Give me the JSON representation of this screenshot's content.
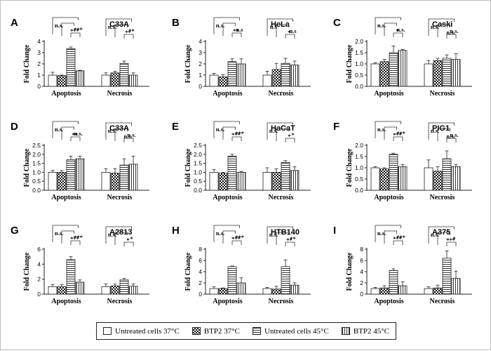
{
  "legend": {
    "items": [
      {
        "label": "Untreated cells 37°C",
        "pattern": "white"
      },
      {
        "label": "BTP2 37°C",
        "pattern": "check"
      },
      {
        "label": "Untreated cells 45°C",
        "pattern": "hlines"
      },
      {
        "label": "BTP2 45°C",
        "pattern": "vlines"
      }
    ]
  },
  "chart_data": [
    {
      "panel": "A",
      "title": "C33A",
      "type": "bar",
      "ylabel": "Fold Change",
      "categories": [
        "Apoptosis",
        "Necrosis"
      ],
      "ylim": [
        0,
        4
      ],
      "yticks": [
        "0",
        "1",
        "2",
        "3",
        "4"
      ],
      "values": [
        [
          1.0,
          0.95,
          3.35,
          1.38
        ],
        [
          1.0,
          1.2,
          2.05,
          1.0
        ]
      ],
      "errors": [
        [
          0.25,
          0.05,
          0.15,
          0.05
        ],
        [
          0.2,
          0.15,
          0.2,
          0.2
        ]
      ],
      "annotations": [
        [
          "n.s.",
          "***",
          "***"
        ],
        [
          "n.s.",
          "**",
          "**"
        ]
      ]
    },
    {
      "panel": "B",
      "title": "HeLa",
      "type": "bar",
      "ylabel": "Fold Change",
      "categories": [
        "Apoptosis",
        "Necrosis"
      ],
      "ylim": [
        0,
        4
      ],
      "yticks": [
        "0",
        "1",
        "2",
        "3",
        "4"
      ],
      "values": [
        [
          1.0,
          0.85,
          2.2,
          2.0
        ],
        [
          1.0,
          1.5,
          2.05,
          1.9
        ]
      ],
      "errors": [
        [
          0.15,
          0.2,
          0.25,
          0.45
        ],
        [
          0.35,
          0.55,
          0.45,
          0.35
        ]
      ],
      "annotations": [
        [
          "n.s.",
          "**",
          "n.s"
        ],
        [
          "n.s",
          "*",
          "n.s"
        ]
      ]
    },
    {
      "panel": "C",
      "title": "Caski",
      "type": "bar",
      "ylabel": "Fold Change",
      "categories": [
        "Apoptosis",
        "Necrosis"
      ],
      "ylim": [
        0,
        2.0
      ],
      "yticks": [
        "0.0",
        "0.5",
        "1.0",
        "1.5",
        "2.0"
      ],
      "values": [
        [
          1.0,
          1.1,
          1.5,
          1.6
        ],
        [
          1.0,
          1.15,
          1.25,
          1.2
        ]
      ],
      "errors": [
        [
          0.05,
          0.1,
          0.3,
          0.05
        ],
        [
          0.15,
          0.1,
          0.15,
          0.25
        ]
      ],
      "annotations": [
        [
          "n.s.",
          "*",
          "n.s."
        ],
        [
          "n.s.",
          "n.s.",
          "n.s."
        ]
      ]
    },
    {
      "panel": "D",
      "title": "C33A",
      "type": "bar",
      "ylabel": "Fold Change",
      "categories": [
        "Apoptosis",
        "Necrosis"
      ],
      "ylim": [
        0,
        2.5
      ],
      "yticks": [
        "0.0",
        "0.5",
        "1.0",
        "1.5",
        "2.0",
        "2.5"
      ],
      "values": [
        [
          1.0,
          1.0,
          1.7,
          1.75
        ],
        [
          1.0,
          0.95,
          1.4,
          1.45
        ]
      ],
      "errors": [
        [
          0.1,
          0.1,
          0.2,
          0.15
        ],
        [
          0.2,
          0.25,
          0.35,
          0.45
        ]
      ],
      "annotations": [
        [
          "n.s.",
          "**",
          "n.s."
        ],
        [
          "n.s.",
          "n.s.",
          "n.s."
        ]
      ]
    },
    {
      "panel": "E",
      "title": "HaCaT",
      "type": "bar",
      "ylabel": "Fold Change",
      "categories": [
        "Apoptosis",
        "Necrosis"
      ],
      "ylim": [
        0,
        2.5
      ],
      "yticks": [
        "0.0",
        "0.5",
        "1.0",
        "1.5",
        "2.0",
        "2.5"
      ],
      "values": [
        [
          1.0,
          0.95,
          1.9,
          1.0
        ],
        [
          1.0,
          1.0,
          1.55,
          1.1
        ]
      ],
      "errors": [
        [
          0.15,
          0.05,
          0.1,
          0.05
        ],
        [
          0.25,
          0.2,
          0.1,
          0.2
        ]
      ],
      "annotations": [
        [
          "n.s.",
          "***",
          "***"
        ],
        [
          "n.s.",
          "*",
          "*"
        ]
      ]
    },
    {
      "panel": "F",
      "title": "PIG1",
      "type": "bar",
      "ylabel": "Fold Change",
      "categories": [
        "Apoptosis",
        "Necrosis"
      ],
      "ylim": [
        0,
        2.0
      ],
      "yticks": [
        "0.0",
        "0.5",
        "1.0",
        "1.5",
        "2.0"
      ],
      "values": [
        [
          1.0,
          0.95,
          1.6,
          1.05
        ],
        [
          1.0,
          0.85,
          1.4,
          1.05
        ]
      ],
      "errors": [
        [
          0.05,
          0.05,
          0.05,
          0.1
        ],
        [
          0.35,
          0.2,
          0.35,
          0.1
        ]
      ],
      "annotations": [
        [
          "n.s.",
          "***",
          "***"
        ],
        [
          "n.s.",
          "n.s.",
          "n.s."
        ]
      ]
    },
    {
      "panel": "G",
      "title": "A2813",
      "type": "bar",
      "ylabel": "Fold Change",
      "categories": [
        "Apoptosis",
        "Necrosis"
      ],
      "ylim": [
        0,
        6
      ],
      "yticks": [
        "0",
        "2",
        "4",
        "6"
      ],
      "values": [
        [
          1.0,
          1.0,
          4.6,
          1.6
        ],
        [
          1.0,
          1.1,
          1.9,
          1.05
        ]
      ],
      "errors": [
        [
          0.3,
          0.3,
          0.4,
          0.3
        ],
        [
          0.35,
          0.25,
          0.2,
          0.3
        ]
      ],
      "annotations": [
        [
          "n.s.",
          "***",
          "***"
        ],
        [
          "n.s.",
          "*",
          "*"
        ]
      ]
    },
    {
      "panel": "H",
      "title": "HTB140",
      "type": "bar",
      "ylabel": "Fold Change",
      "categories": [
        "Apoptosis",
        "Necrosis"
      ],
      "ylim": [
        0,
        8
      ],
      "yticks": [
        "0",
        "2",
        "4",
        "6",
        "8"
      ],
      "values": [
        [
          1.0,
          1.0,
          4.9,
          2.0
        ],
        [
          1.0,
          0.9,
          4.9,
          1.6
        ]
      ],
      "errors": [
        [
          0.3,
          0.1,
          0.1,
          0.9
        ],
        [
          0.2,
          0.5,
          1.2,
          0.4
        ]
      ],
      "annotations": [
        [
          "n.s.",
          "***",
          "***"
        ],
        [
          "n.s.",
          "**",
          "**"
        ]
      ]
    },
    {
      "panel": "I",
      "title": "A375",
      "type": "bar",
      "ylabel": "Fold Change",
      "categories": [
        "Apoptosis",
        "Necrosis"
      ],
      "ylim": [
        0,
        8
      ],
      "yticks": [
        "0",
        "2",
        "4",
        "6",
        "8"
      ],
      "values": [
        [
          1.0,
          1.1,
          4.2,
          1.5
        ],
        [
          1.0,
          1.1,
          6.4,
          2.8
        ]
      ],
      "errors": [
        [
          0.2,
          0.4,
          0.3,
          0.7
        ],
        [
          0.3,
          0.5,
          1.3,
          1.3
        ]
      ],
      "annotations": [
        [
          "n.s.",
          "***",
          "***"
        ],
        [
          "n.s.",
          "***",
          "*"
        ]
      ]
    }
  ]
}
